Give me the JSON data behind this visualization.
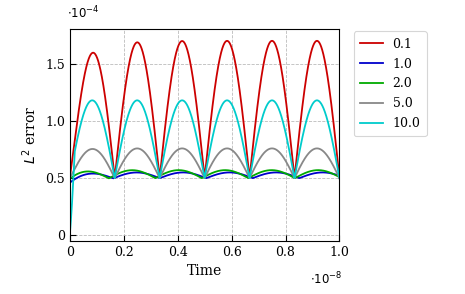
{
  "xlabel": "Time",
  "ylabel": "$L^2$ error",
  "xlim": [
    0,
    1e-08
  ],
  "ylim": [
    -5e-06,
    0.00018
  ],
  "legend_labels": [
    "0.1",
    "1.0",
    "2.0",
    "5.0",
    "10.0"
  ],
  "legend_colors": [
    "#cc0000",
    "#0000cc",
    "#00aa00",
    "#888888",
    "#00cccc"
  ],
  "line_widths": [
    1.3,
    1.3,
    1.3,
    1.3,
    1.3
  ],
  "base_level": 5e-05,
  "amplitude_red": 0.00012,
  "amplitude_cyan": 6.8e-05,
  "amplitude_gray": 2.6e-05,
  "amplitude_blue": 5e-06,
  "amplitude_green": 7e-06,
  "freq_red": 6.0,
  "freq_cyan": 6.0,
  "freq_gray": 6.0,
  "freq_blue": 5.8,
  "freq_green": 5.8,
  "phase_red": 0.0,
  "phase_cyan": 0.0,
  "phase_gray": 0.0,
  "phase_blue": 0.2,
  "phase_green": 0.5
}
